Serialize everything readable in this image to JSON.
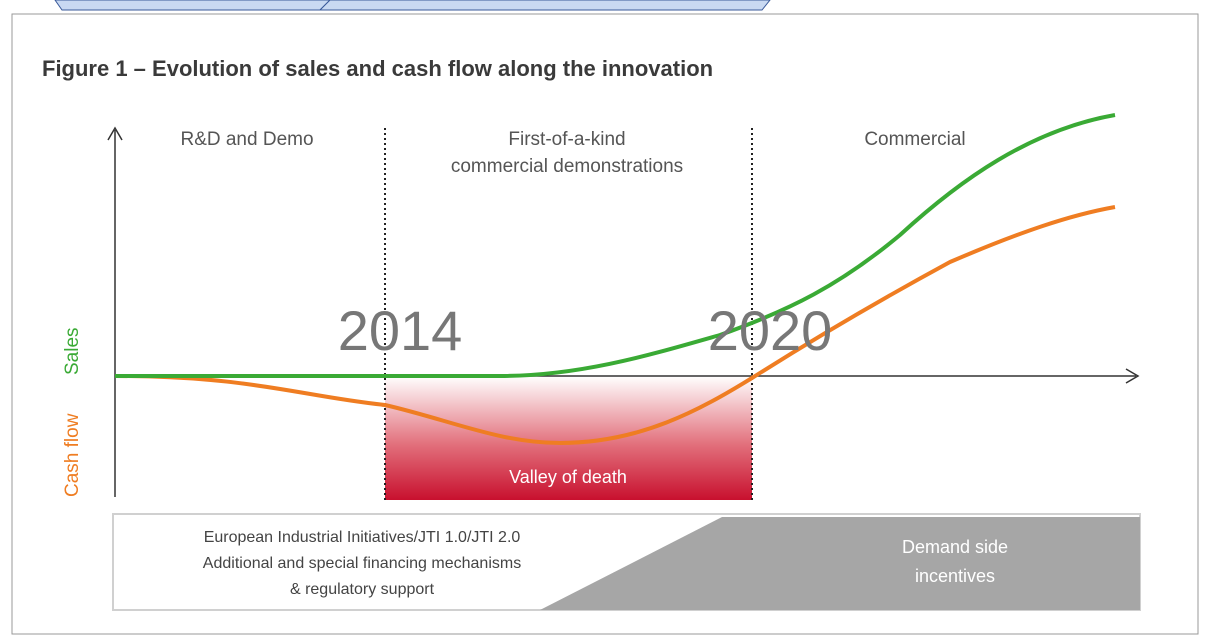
{
  "title": "Figure 1 – Evolution of sales and cash flow along the innovation",
  "phases": [
    [
      "R&D and Demo"
    ],
    [
      "First-of-a-kind",
      "commercial demonstrations"
    ],
    [
      "Commercial"
    ]
  ],
  "years": [
    "2014",
    "2020"
  ],
  "axis_labels": {
    "sales": "Sales",
    "cash_flow": "Cash flow"
  },
  "valley_label": "Valley of death",
  "support": {
    "left": [
      "European Industrial Initiatives/JTI 1.0/JTI 2.0",
      "Additional and special financing mechanisms",
      "& regulatory support"
    ],
    "right": [
      "Demand side",
      "incentives"
    ]
  }
}
